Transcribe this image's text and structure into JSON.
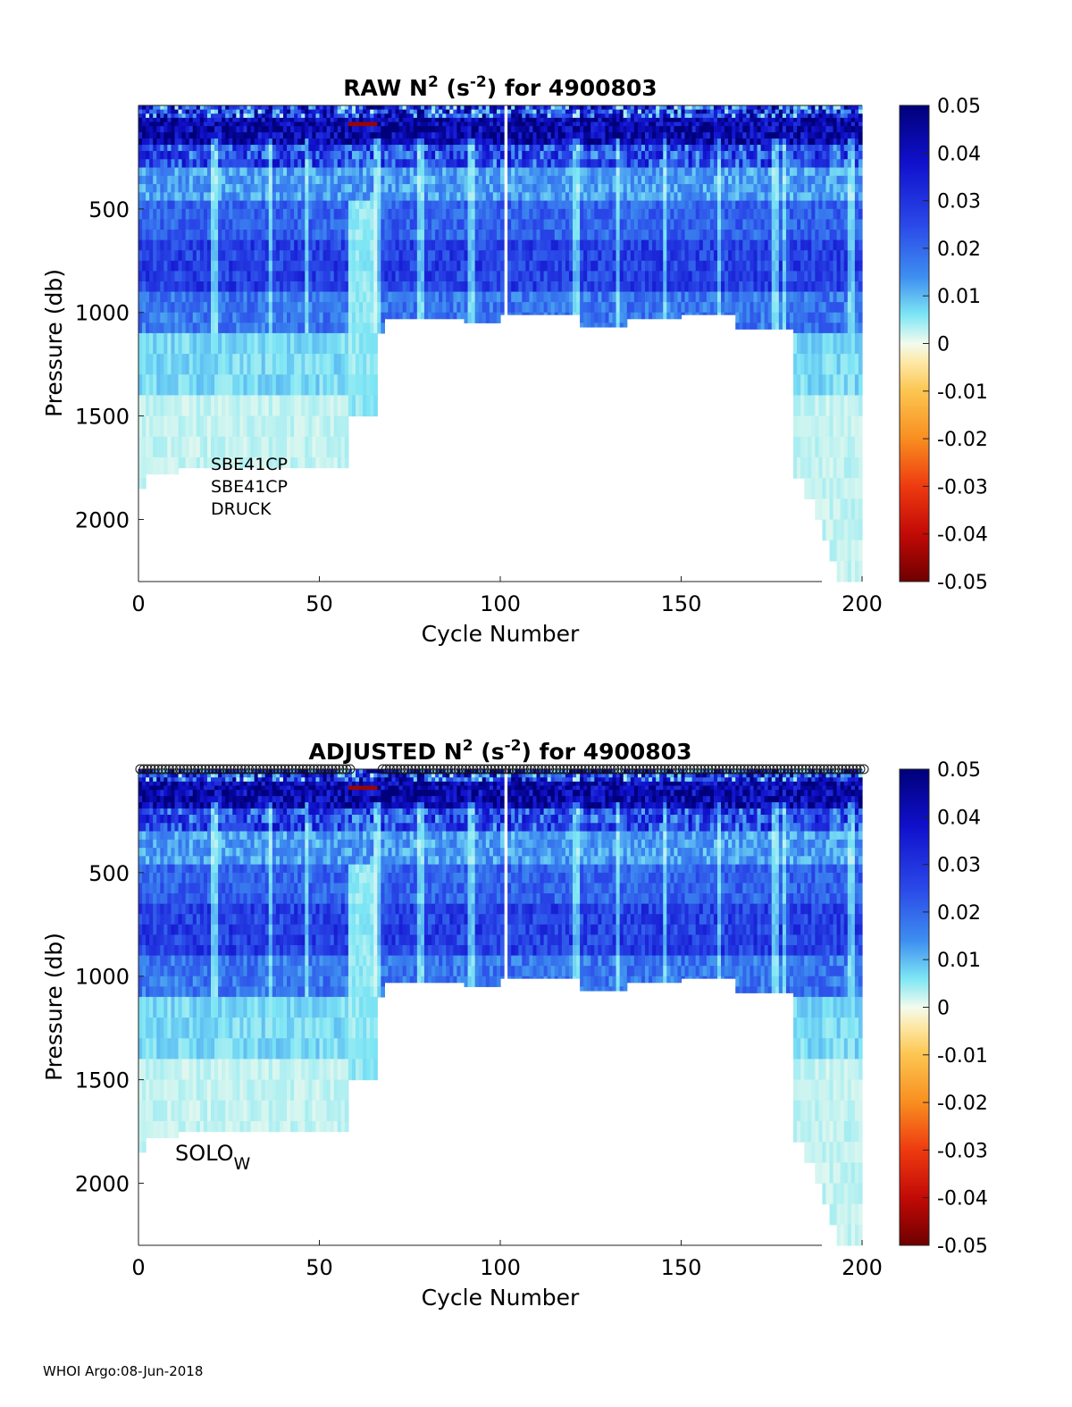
{
  "chart_data": [
    {
      "type": "heatmap",
      "title": "RAW N",
      "title_sup": "2",
      "title_mid": " (s",
      "title_sup2": "-2",
      "title_end": ") for 4900803",
      "xlabel": "Cycle Number",
      "ylabel": "Pressure (db)",
      "xlim": [
        0,
        200
      ],
      "ylim": [
        2300,
        0
      ],
      "xticks": [
        "0",
        "50",
        "100",
        "150",
        "200"
      ],
      "yticks": [
        "500",
        "1000",
        "1500",
        "2000"
      ],
      "colorbar": {
        "min": -0.05,
        "max": 0.05,
        "ticks": [
          "0.05",
          "0.04",
          "0.03",
          "0.02",
          "0.01",
          "0",
          "-0.01",
          "-0.02",
          "-0.03",
          "-0.04",
          "-0.05"
        ]
      },
      "annotation_lines": [
        "SBE41CP",
        "SBE41CP",
        "DRUCK"
      ]
    },
    {
      "type": "heatmap",
      "title": "ADJUSTED N",
      "title_sup": "2",
      "title_mid": " (s",
      "title_sup2": "-2",
      "title_end": ") for 4900803",
      "xlabel": "Cycle Number",
      "ylabel": "Pressure (db)",
      "xlim": [
        0,
        200
      ],
      "ylim": [
        2300,
        0
      ],
      "xticks": [
        "0",
        "50",
        "100",
        "150",
        "200"
      ],
      "yticks": [
        "500",
        "1000",
        "1500",
        "2000"
      ],
      "colorbar": {
        "min": -0.05,
        "max": 0.05,
        "ticks": [
          "0.05",
          "0.04",
          "0.03",
          "0.02",
          "0.01",
          "0",
          "-0.01",
          "-0.02",
          "-0.03",
          "-0.04",
          "-0.05"
        ]
      },
      "annotation_main": "SOLO",
      "annotation_sub": "W",
      "top_markers": "circles at every cycle along the surface"
    }
  ],
  "profile_depth_segments": [
    {
      "from": 0,
      "to": 2,
      "depth": 1850
    },
    {
      "from": 2,
      "to": 11,
      "depth": 1780
    },
    {
      "from": 11,
      "to": 58,
      "depth": 1750
    },
    {
      "from": 58,
      "to": 66,
      "depth": 1500
    },
    {
      "from": 66,
      "to": 68,
      "depth": 1100
    },
    {
      "from": 68,
      "to": 90,
      "depth": 1030
    },
    {
      "from": 90,
      "to": 100,
      "depth": 1050
    },
    {
      "from": 100,
      "to": 122,
      "depth": 1010
    },
    {
      "from": 122,
      "to": 135,
      "depth": 1070
    },
    {
      "from": 135,
      "to": 150,
      "depth": 1030
    },
    {
      "from": 150,
      "to": 165,
      "depth": 1010
    },
    {
      "from": 165,
      "to": 181,
      "depth": 1080
    },
    {
      "from": 181,
      "to": 184,
      "depth": 1800
    },
    {
      "from": 184,
      "to": 187,
      "depth": 1900
    },
    {
      "from": 187,
      "to": 189,
      "depth": 2000
    },
    {
      "from": 189,
      "to": 191,
      "depth": 2100
    },
    {
      "from": 191,
      "to": 193,
      "depth": 2200
    },
    {
      "from": 193,
      "to": 200,
      "depth": 2300
    }
  ],
  "missing_cycles": [
    101
  ],
  "footer": "WHOI Argo:08-Jun-2018"
}
